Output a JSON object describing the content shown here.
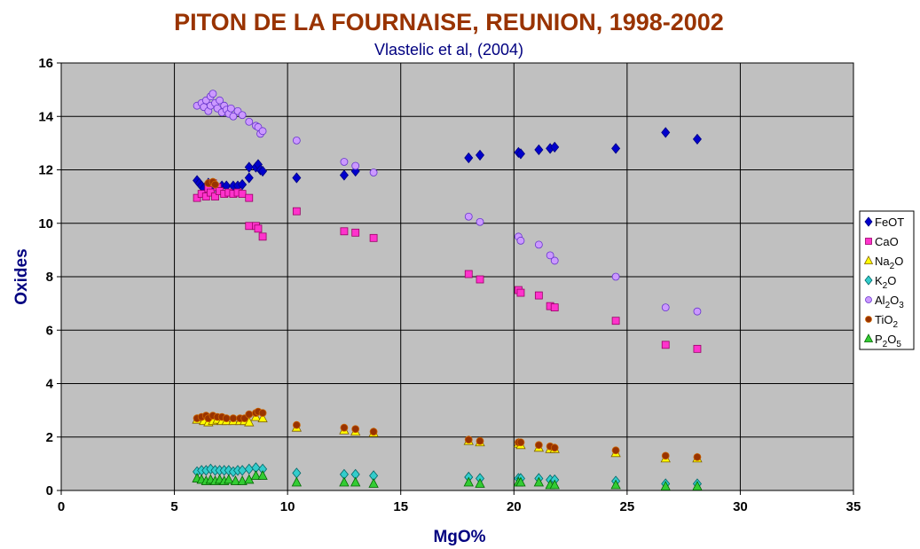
{
  "chart_data": {
    "type": "scatter",
    "title": "PITON DE LA FOURNAISE, REUNION, 1998-2002",
    "subtitle": "Vlastelic et al, (2004)",
    "xlabel": "MgO%",
    "ylabel": "Oxides",
    "xlim": [
      0,
      35
    ],
    "ylim": [
      0,
      16
    ],
    "xticks": [
      "0",
      "5",
      "10",
      "15",
      "20",
      "25",
      "30",
      "35"
    ],
    "yticks": [
      "0",
      "2",
      "4",
      "6",
      "8",
      "10",
      "12",
      "14",
      "16"
    ],
    "grid": true,
    "legend_position": "right",
    "colors": {
      "title": "#993300",
      "subtitle": "#000080",
      "axis_label": "#000080",
      "plot_background": "#c0c0c0"
    },
    "series": [
      {
        "name": "FeOT",
        "name_base": "FeOT",
        "name_sub": "",
        "name_mid": "",
        "name_sub2": "",
        "marker": "diamond",
        "color": "#0000cc",
        "stroke": "#000080",
        "points": [
          [
            6.0,
            11.6
          ],
          [
            6.1,
            11.5
          ],
          [
            6.2,
            11.4
          ],
          [
            6.3,
            11.3
          ],
          [
            6.5,
            11.5
          ],
          [
            6.7,
            11.4
          ],
          [
            6.9,
            11.3
          ],
          [
            7.1,
            11.4
          ],
          [
            7.3,
            11.4
          ],
          [
            7.6,
            11.4
          ],
          [
            7.8,
            11.4
          ],
          [
            8.0,
            11.45
          ],
          [
            8.3,
            11.7
          ],
          [
            8.3,
            12.1
          ],
          [
            8.6,
            12.1
          ],
          [
            8.7,
            12.2
          ],
          [
            8.8,
            12.0
          ],
          [
            8.9,
            11.95
          ],
          [
            10.4,
            11.7
          ],
          [
            12.5,
            11.8
          ],
          [
            13.0,
            11.95
          ],
          [
            18.0,
            12.45
          ],
          [
            18.5,
            12.55
          ],
          [
            20.2,
            12.65
          ],
          [
            20.3,
            12.6
          ],
          [
            21.1,
            12.75
          ],
          [
            21.6,
            12.8
          ],
          [
            21.8,
            12.85
          ],
          [
            24.5,
            12.8
          ],
          [
            26.7,
            13.4
          ],
          [
            28.1,
            13.15
          ]
        ]
      },
      {
        "name": "CaO",
        "name_base": "CaO",
        "name_sub": "",
        "name_mid": "",
        "name_sub2": "",
        "marker": "square",
        "color": "#ff33cc",
        "stroke": "#990066",
        "points": [
          [
            6.0,
            10.95
          ],
          [
            6.2,
            11.1
          ],
          [
            6.4,
            11.0
          ],
          [
            6.5,
            11.3
          ],
          [
            6.6,
            11.15
          ],
          [
            6.7,
            11.5
          ],
          [
            6.8,
            11.0
          ],
          [
            6.9,
            11.35
          ],
          [
            7.0,
            11.2
          ],
          [
            7.2,
            11.1
          ],
          [
            7.4,
            11.15
          ],
          [
            7.6,
            11.1
          ],
          [
            7.8,
            11.15
          ],
          [
            8.0,
            11.1
          ],
          [
            8.3,
            10.95
          ],
          [
            8.3,
            9.9
          ],
          [
            8.6,
            9.9
          ],
          [
            8.7,
            9.8
          ],
          [
            8.9,
            9.5
          ],
          [
            10.4,
            10.45
          ],
          [
            12.5,
            9.7
          ],
          [
            13.0,
            9.65
          ],
          [
            13.8,
            9.45
          ],
          [
            18.0,
            8.1
          ],
          [
            18.5,
            7.9
          ],
          [
            20.2,
            7.5
          ],
          [
            20.3,
            7.4
          ],
          [
            21.1,
            7.3
          ],
          [
            21.6,
            6.9
          ],
          [
            21.8,
            6.85
          ],
          [
            24.5,
            6.35
          ],
          [
            26.7,
            5.45
          ],
          [
            28.1,
            5.3
          ]
        ]
      },
      {
        "name": "Na2O",
        "name_base": "Na",
        "name_sub": "2",
        "name_mid": "O",
        "name_sub2": "",
        "marker": "triangle",
        "color": "#ffff00",
        "stroke": "#806000",
        "points": [
          [
            6.0,
            2.65
          ],
          [
            6.3,
            2.6
          ],
          [
            6.5,
            2.55
          ],
          [
            6.7,
            2.6
          ],
          [
            6.9,
            2.65
          ],
          [
            7.1,
            2.6
          ],
          [
            7.3,
            2.6
          ],
          [
            7.6,
            2.6
          ],
          [
            7.9,
            2.6
          ],
          [
            8.1,
            2.6
          ],
          [
            8.3,
            2.55
          ],
          [
            8.6,
            2.75
          ],
          [
            8.9,
            2.7
          ],
          [
            10.4,
            2.35
          ],
          [
            12.5,
            2.25
          ],
          [
            13.0,
            2.2
          ],
          [
            13.8,
            2.15
          ],
          [
            18.0,
            1.85
          ],
          [
            18.5,
            1.8
          ],
          [
            20.2,
            1.75
          ],
          [
            20.3,
            1.7
          ],
          [
            21.1,
            1.6
          ],
          [
            21.6,
            1.55
          ],
          [
            21.8,
            1.55
          ],
          [
            24.5,
            1.4
          ],
          [
            26.7,
            1.2
          ],
          [
            28.1,
            1.2
          ]
        ]
      },
      {
        "name": "K2O",
        "name_base": "K",
        "name_sub": "2",
        "name_mid": "O",
        "name_sub2": "",
        "marker": "diamond",
        "color": "#33cccc",
        "stroke": "#006666",
        "points": [
          [
            6.0,
            0.7
          ],
          [
            6.2,
            0.75
          ],
          [
            6.4,
            0.75
          ],
          [
            6.6,
            0.8
          ],
          [
            6.8,
            0.75
          ],
          [
            7.0,
            0.75
          ],
          [
            7.2,
            0.75
          ],
          [
            7.4,
            0.75
          ],
          [
            7.6,
            0.7
          ],
          [
            7.8,
            0.75
          ],
          [
            8.0,
            0.75
          ],
          [
            8.3,
            0.8
          ],
          [
            8.6,
            0.85
          ],
          [
            8.9,
            0.8
          ],
          [
            10.4,
            0.65
          ],
          [
            12.5,
            0.6
          ],
          [
            13.0,
            0.6
          ],
          [
            13.8,
            0.55
          ],
          [
            18.0,
            0.5
          ],
          [
            18.5,
            0.45
          ],
          [
            20.2,
            0.45
          ],
          [
            20.3,
            0.45
          ],
          [
            21.1,
            0.45
          ],
          [
            21.6,
            0.4
          ],
          [
            21.8,
            0.4
          ],
          [
            24.5,
            0.35
          ],
          [
            26.7,
            0.25
          ],
          [
            28.1,
            0.25
          ]
        ]
      },
      {
        "name": "Al2O3",
        "name_base": "Al",
        "name_sub": "2",
        "name_mid": "O",
        "name_sub2": "3",
        "marker": "circle",
        "color": "#cc99ff",
        "stroke": "#6633cc",
        "points": [
          [
            6.0,
            14.4
          ],
          [
            6.2,
            14.5
          ],
          [
            6.3,
            14.35
          ],
          [
            6.4,
            14.6
          ],
          [
            6.5,
            14.2
          ],
          [
            6.6,
            14.75
          ],
          [
            6.6,
            14.4
          ],
          [
            6.7,
            14.85
          ],
          [
            6.8,
            14.5
          ],
          [
            6.9,
            14.3
          ],
          [
            7.0,
            14.6
          ],
          [
            7.1,
            14.15
          ],
          [
            7.2,
            14.4
          ],
          [
            7.3,
            14.25
          ],
          [
            7.4,
            14.1
          ],
          [
            7.5,
            14.3
          ],
          [
            7.6,
            14.0
          ],
          [
            7.8,
            14.2
          ],
          [
            8.0,
            14.05
          ],
          [
            8.3,
            13.8
          ],
          [
            8.6,
            13.65
          ],
          [
            8.7,
            13.6
          ],
          [
            8.8,
            13.35
          ],
          [
            8.9,
            13.45
          ],
          [
            10.4,
            13.1
          ],
          [
            12.5,
            12.3
          ],
          [
            13.0,
            12.15
          ],
          [
            13.8,
            11.9
          ],
          [
            18.0,
            10.25
          ],
          [
            18.5,
            10.05
          ],
          [
            20.2,
            9.5
          ],
          [
            20.3,
            9.35
          ],
          [
            21.1,
            9.2
          ],
          [
            21.6,
            8.8
          ],
          [
            21.8,
            8.6
          ],
          [
            24.5,
            8.0
          ],
          [
            26.7,
            6.85
          ],
          [
            28.1,
            6.7
          ]
        ]
      },
      {
        "name": "TiO2",
        "name_base": "TiO",
        "name_sub": "2",
        "name_mid": "",
        "name_sub2": "",
        "marker": "circle",
        "color": "#993300",
        "stroke": "#cc6600",
        "points": [
          [
            6.0,
            2.7
          ],
          [
            6.2,
            2.75
          ],
          [
            6.4,
            2.8
          ],
          [
            6.5,
            2.7
          ],
          [
            6.7,
            2.8
          ],
          [
            6.9,
            2.75
          ],
          [
            7.1,
            2.75
          ],
          [
            7.3,
            2.7
          ],
          [
            7.6,
            2.7
          ],
          [
            7.9,
            2.7
          ],
          [
            8.1,
            2.7
          ],
          [
            8.3,
            2.85
          ],
          [
            8.6,
            2.9
          ],
          [
            8.7,
            2.95
          ],
          [
            8.9,
            2.9
          ],
          [
            10.4,
            2.45
          ],
          [
            12.5,
            2.35
          ],
          [
            13.0,
            2.3
          ],
          [
            13.8,
            2.2
          ],
          [
            18.0,
            1.9
          ],
          [
            18.5,
            1.85
          ],
          [
            20.2,
            1.8
          ],
          [
            20.3,
            1.8
          ],
          [
            21.1,
            1.7
          ],
          [
            21.6,
            1.65
          ],
          [
            21.8,
            1.6
          ],
          [
            24.5,
            1.5
          ],
          [
            26.7,
            1.3
          ],
          [
            28.1,
            1.25
          ],
          [
            6.5,
            11.5
          ],
          [
            6.7,
            11.55
          ],
          [
            6.8,
            11.45
          ]
        ]
      },
      {
        "name": "P2O5",
        "name_base": "P",
        "name_sub": "2",
        "name_mid": "O",
        "name_sub2": "5",
        "marker": "triangle",
        "color": "#33cc33",
        "stroke": "#006600",
        "points": [
          [
            6.0,
            0.45
          ],
          [
            6.2,
            0.4
          ],
          [
            6.4,
            0.35
          ],
          [
            6.6,
            0.4
          ],
          [
            6.8,
            0.35
          ],
          [
            7.0,
            0.4
          ],
          [
            7.2,
            0.35
          ],
          [
            7.4,
            0.4
          ],
          [
            7.7,
            0.35
          ],
          [
            8.0,
            0.35
          ],
          [
            8.3,
            0.4
          ],
          [
            8.6,
            0.55
          ],
          [
            8.9,
            0.55
          ],
          [
            10.4,
            0.3
          ],
          [
            12.5,
            0.3
          ],
          [
            13.0,
            0.3
          ],
          [
            13.8,
            0.25
          ],
          [
            18.0,
            0.3
          ],
          [
            18.5,
            0.25
          ],
          [
            20.2,
            0.3
          ],
          [
            20.3,
            0.3
          ],
          [
            21.1,
            0.3
          ],
          [
            21.6,
            0.2
          ],
          [
            21.8,
            0.2
          ],
          [
            24.5,
            0.2
          ],
          [
            26.7,
            0.15
          ],
          [
            28.1,
            0.15
          ]
        ]
      }
    ]
  }
}
